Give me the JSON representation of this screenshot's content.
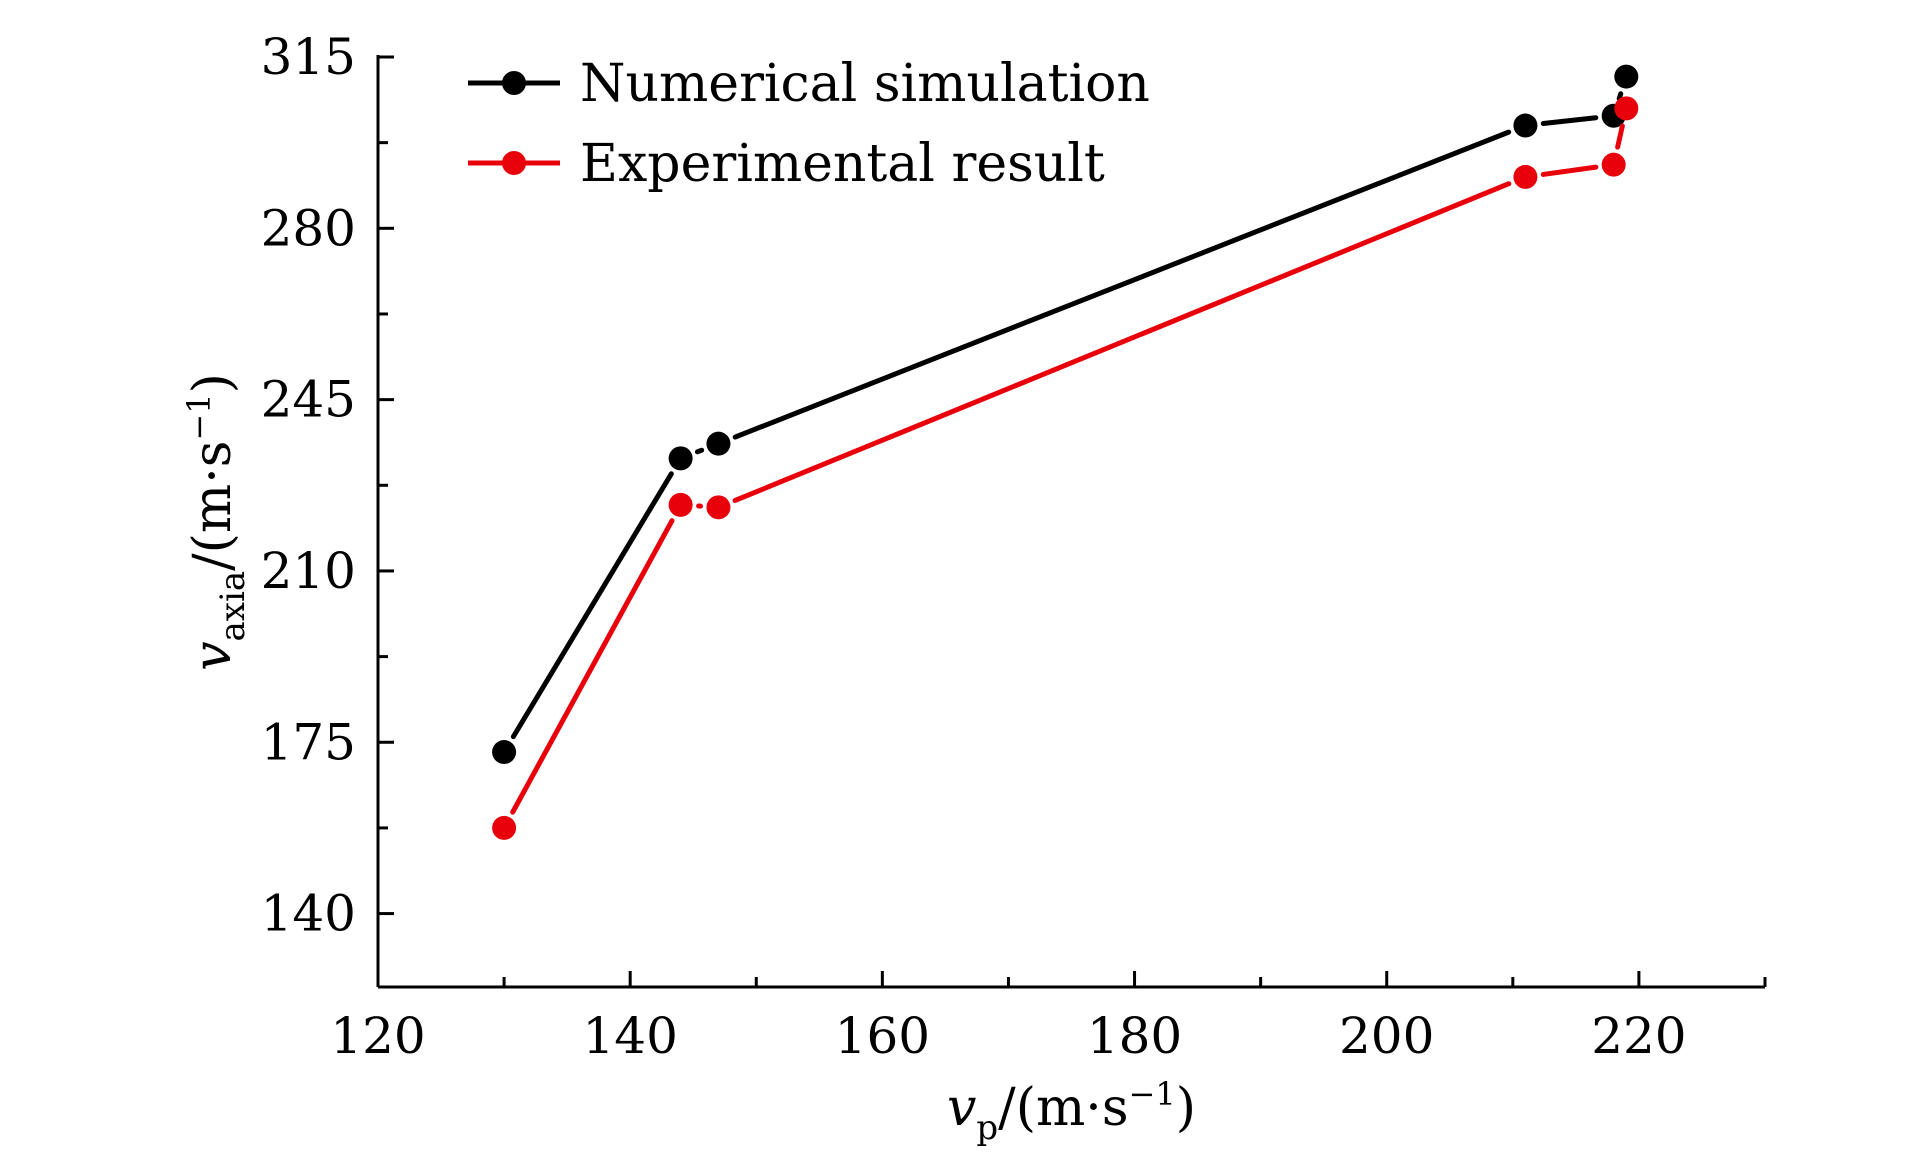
{
  "chart_data": {
    "type": "line",
    "xlabel": {
      "var": "v",
      "sub": "p",
      "unit": "/(m·s",
      "sup": "−1",
      "close": ")"
    },
    "ylabel": {
      "var": "v",
      "sub": "axia",
      "unit": "/(m·s",
      "sup": "−1",
      "close": ")"
    },
    "xlim": [
      120,
      230
    ],
    "ylim": [
      125,
      315
    ],
    "xticks": [
      120,
      140,
      160,
      180,
      200,
      220
    ],
    "yticks": [
      140,
      175,
      210,
      245,
      280,
      315
    ],
    "x_minor_step": 10,
    "y_minor_step": 17.5,
    "grid": false,
    "legend_position": "top-left",
    "series": [
      {
        "name": "Numerical simulation",
        "color": "#000000",
        "x": [
          130,
          144,
          147,
          211,
          218,
          219
        ],
        "y": [
          173,
          233,
          236,
          301,
          303,
          311
        ]
      },
      {
        "name": "Experimental result",
        "color": "#e8000b",
        "x": [
          130,
          144,
          147,
          211,
          218,
          219
        ],
        "y": [
          157.5,
          223.5,
          223,
          290.5,
          293,
          304.5
        ]
      }
    ]
  }
}
